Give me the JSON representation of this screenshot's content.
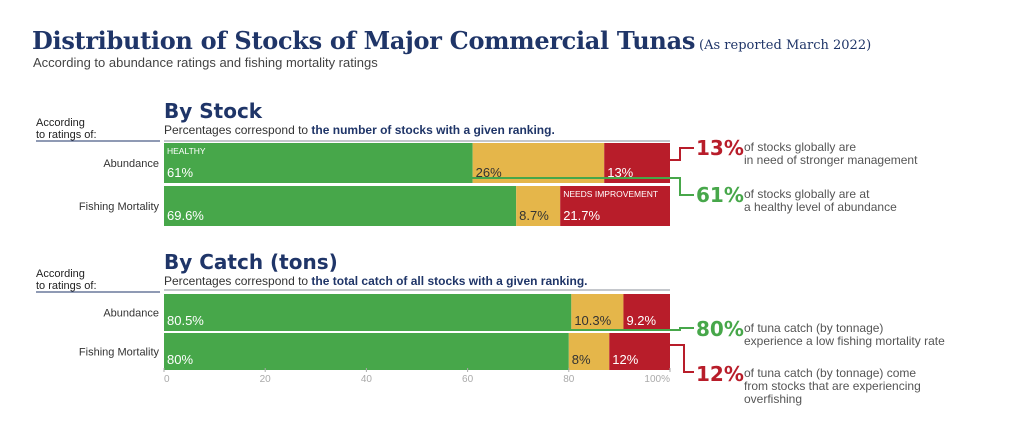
{
  "header": {
    "title": "Distribution of Stocks of Major Commercial Tunas",
    "title_note": "(As reported March 2022)",
    "subtitle": "According to abundance ratings and fishing mortality ratings"
  },
  "colors": {
    "green": "#47a74a",
    "yellow": "#e5b64a",
    "red": "#b81d2a",
    "navy": "#1f3568"
  },
  "chart_data": [
    {
      "type": "bar",
      "orientation": "horizontal",
      "stacked": true,
      "side_label": "According to ratings of:",
      "title": "By Stock",
      "caption_prefix": "Percentages correspond to ",
      "caption_bold": "the number of stocks with a given ranking.",
      "categories": [
        "Abundance",
        "Fishing Mortality"
      ],
      "series": [
        {
          "name": "HEALTHY",
          "color": "green",
          "values": [
            61,
            69.6
          ],
          "labels": [
            "61%",
            "69.6%"
          ]
        },
        {
          "color": "yellow",
          "values": [
            26,
            8.7
          ],
          "labels": [
            "26%",
            "8.7%"
          ]
        },
        {
          "name": "NEEDS IMPROVEMENT",
          "color": "red",
          "values": [
            13,
            21.7
          ],
          "labels": [
            "13%",
            "21.7%"
          ]
        }
      ],
      "xlim": [
        0,
        100
      ]
    },
    {
      "type": "bar",
      "orientation": "horizontal",
      "stacked": true,
      "side_label": "According to ratings of:",
      "title": "By Catch (tons)",
      "caption_prefix": "Percentages correspond to ",
      "caption_bold": "the total catch of all stocks with a given ranking.",
      "categories": [
        "Abundance",
        "Fishing Mortality"
      ],
      "series": [
        {
          "color": "green",
          "values": [
            80.5,
            80
          ],
          "labels": [
            "80.5%",
            "80%"
          ]
        },
        {
          "color": "yellow",
          "values": [
            10.3,
            8
          ],
          "labels": [
            "10.3%",
            "8%"
          ]
        },
        {
          "color": "red",
          "values": [
            9.2,
            12
          ],
          "labels": [
            "9.2%",
            "12%"
          ]
        }
      ],
      "xlim": [
        0,
        100
      ],
      "xticks": [
        "0",
        "20",
        "40",
        "60",
        "80",
        "100%"
      ]
    }
  ],
  "callouts": [
    {
      "big": "13%",
      "color": "red",
      "text": [
        "of stocks globally are",
        "in need of stronger management"
      ]
    },
    {
      "big": "61%",
      "color": "green",
      "text": [
        "of stocks globally are at",
        "a healthy level of abundance"
      ]
    },
    {
      "big": "80%",
      "color": "green",
      "text": [
        "of tuna catch (by tonnage)",
        "experience a low fishing mortality rate"
      ]
    },
    {
      "big": "12%",
      "color": "red",
      "text": [
        "of tuna catch (by tonnage) come",
        "from stocks that are experiencing",
        "overfishing"
      ]
    }
  ]
}
